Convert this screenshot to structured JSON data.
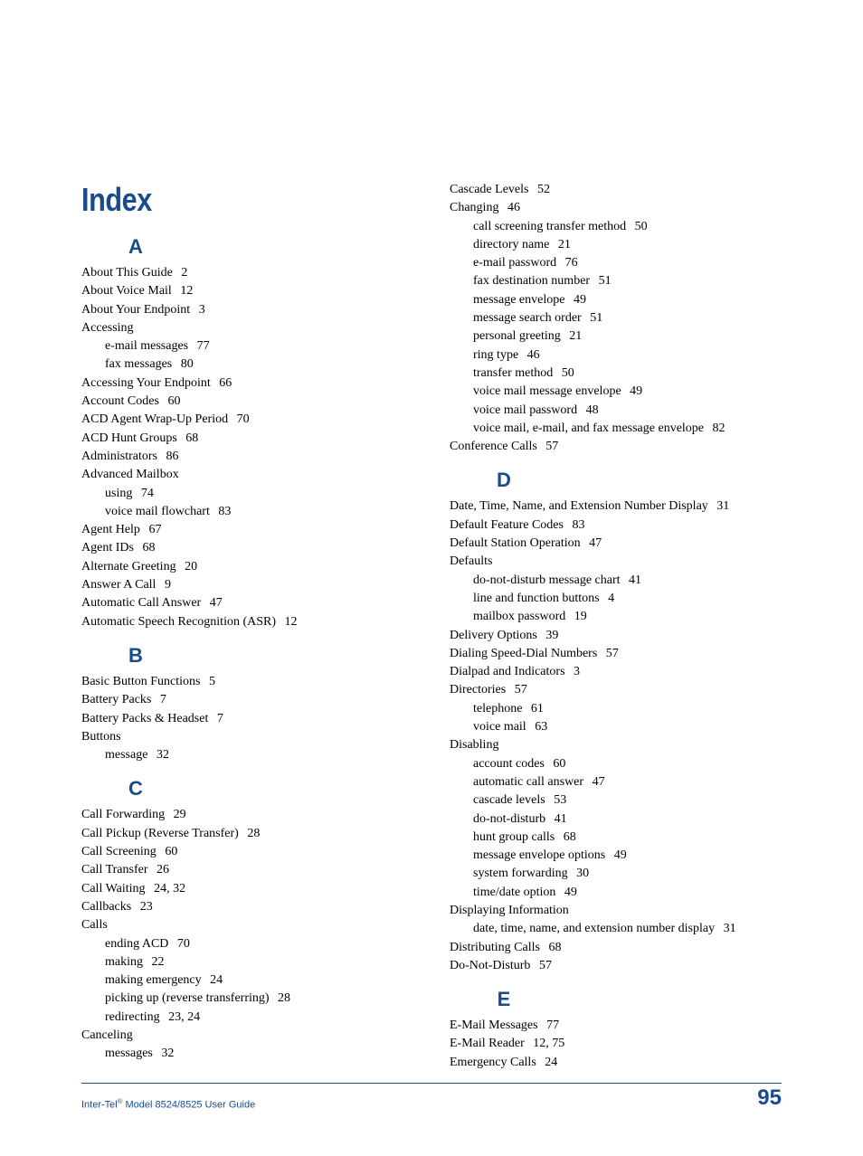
{
  "colors": {
    "brand": "#1a4b8c",
    "text": "#000000",
    "bg": "#ffffff"
  },
  "fonts": {
    "body": "Times New Roman",
    "heading": "Arial",
    "title_size": 36,
    "letter_size": 22,
    "entry_size": 14
  },
  "title": "Index",
  "page_number": "95",
  "footer": "Inter-Tel® Model 8524/8525 User Guide",
  "left": [
    {
      "type": "letter",
      "text": "A"
    },
    {
      "type": "main",
      "text": "About This Guide",
      "page": "2"
    },
    {
      "type": "main",
      "text": "About Voice Mail",
      "page": "12"
    },
    {
      "type": "main",
      "text": "About Your Endpoint",
      "page": "3"
    },
    {
      "type": "main",
      "text": "Accessing"
    },
    {
      "type": "sub",
      "text": "e-mail messages",
      "page": "77"
    },
    {
      "type": "sub",
      "text": "fax messages",
      "page": "80"
    },
    {
      "type": "main",
      "text": "Accessing Your Endpoint",
      "page": "66"
    },
    {
      "type": "main",
      "text": "Account Codes",
      "page": "60"
    },
    {
      "type": "main",
      "text": "ACD Agent Wrap-Up Period",
      "page": "70"
    },
    {
      "type": "main",
      "text": "ACD Hunt Groups",
      "page": "68"
    },
    {
      "type": "main",
      "text": "Administrators",
      "page": "86"
    },
    {
      "type": "main",
      "text": "Advanced Mailbox"
    },
    {
      "type": "sub",
      "text": "using",
      "page": "74"
    },
    {
      "type": "sub",
      "text": "voice mail flowchart",
      "page": "83"
    },
    {
      "type": "main",
      "text": "Agent Help",
      "page": "67"
    },
    {
      "type": "main",
      "text": "Agent IDs",
      "page": "68"
    },
    {
      "type": "main",
      "text": "Alternate Greeting",
      "page": "20"
    },
    {
      "type": "main",
      "text": "Answer A Call",
      "page": "9"
    },
    {
      "type": "main",
      "text": "Automatic Call Answer",
      "page": "47"
    },
    {
      "type": "main",
      "text": "Automatic Speech Recognition (ASR)",
      "page": "12"
    },
    {
      "type": "letter",
      "text": "B"
    },
    {
      "type": "main",
      "text": "Basic Button Functions",
      "page": "5"
    },
    {
      "type": "main",
      "text": "Battery Packs",
      "page": "7"
    },
    {
      "type": "main",
      "text": "Battery Packs & Headset",
      "page": "7"
    },
    {
      "type": "main",
      "text": "Buttons"
    },
    {
      "type": "sub",
      "text": "message",
      "page": "32"
    },
    {
      "type": "letter",
      "text": "C"
    },
    {
      "type": "main",
      "text": "Call Forwarding",
      "page": "29"
    },
    {
      "type": "main",
      "text": "Call Pickup (Reverse Transfer)",
      "page": "28"
    },
    {
      "type": "main",
      "text": "Call Screening",
      "page": "60"
    },
    {
      "type": "main",
      "text": "Call Transfer",
      "page": "26"
    },
    {
      "type": "main",
      "text": "Call Waiting",
      "page": "24,   32"
    },
    {
      "type": "main",
      "text": "Callbacks",
      "page": "23"
    },
    {
      "type": "main",
      "text": "Calls"
    },
    {
      "type": "sub",
      "text": "ending ACD",
      "page": "70"
    },
    {
      "type": "sub",
      "text": "making",
      "page": "22"
    },
    {
      "type": "sub",
      "text": "making emergency",
      "page": "24"
    },
    {
      "type": "sub",
      "text": "picking up (reverse transferring)",
      "page": "28"
    },
    {
      "type": "sub",
      "text": "redirecting",
      "page": "23,   24"
    },
    {
      "type": "main",
      "text": "Canceling"
    },
    {
      "type": "sub",
      "text": "messages",
      "page": "32"
    }
  ],
  "right": [
    {
      "type": "main",
      "text": "Cascade Levels",
      "page": "52"
    },
    {
      "type": "main",
      "text": "Changing",
      "page": "46"
    },
    {
      "type": "sub",
      "text": "call screening transfer method",
      "page": "50"
    },
    {
      "type": "sub",
      "text": "directory name",
      "page": "21"
    },
    {
      "type": "sub",
      "text": "e-mail password",
      "page": "76"
    },
    {
      "type": "sub",
      "text": "fax destination number",
      "page": "51"
    },
    {
      "type": "sub",
      "text": "message envelope",
      "page": "49"
    },
    {
      "type": "sub",
      "text": "message search order",
      "page": "51"
    },
    {
      "type": "sub",
      "text": "personal greeting",
      "page": "21"
    },
    {
      "type": "sub",
      "text": "ring type",
      "page": "46"
    },
    {
      "type": "sub",
      "text": "transfer method",
      "page": "50"
    },
    {
      "type": "sub",
      "text": "voice mail message envelope",
      "page": "49"
    },
    {
      "type": "sub",
      "text": "voice mail password",
      "page": "48"
    },
    {
      "type": "sub",
      "text": "voice mail, e-mail, and fax message envelope",
      "page": "82"
    },
    {
      "type": "main",
      "text": "Conference Calls",
      "page": "57"
    },
    {
      "type": "letter",
      "text": "D"
    },
    {
      "type": "main",
      "text": "Date, Time, Name, and Extension Number Display",
      "page": "31"
    },
    {
      "type": "main",
      "text": "Default Feature Codes",
      "page": "83"
    },
    {
      "type": "main",
      "text": "Default Station Operation",
      "page": "47"
    },
    {
      "type": "main",
      "text": "Defaults"
    },
    {
      "type": "sub",
      "text": "do-not-disturb message chart",
      "page": "41"
    },
    {
      "type": "sub",
      "text": "line and function buttons",
      "page": "4"
    },
    {
      "type": "sub",
      "text": "mailbox password",
      "page": "19"
    },
    {
      "type": "main",
      "text": "Delivery Options",
      "page": "39"
    },
    {
      "type": "main",
      "text": "Dialing Speed-Dial Numbers",
      "page": "57"
    },
    {
      "type": "main",
      "text": "Dialpad and Indicators",
      "page": "3"
    },
    {
      "type": "main",
      "text": "Directories",
      "page": "57"
    },
    {
      "type": "sub",
      "text": "telephone",
      "page": "61"
    },
    {
      "type": "sub",
      "text": "voice mail",
      "page": "63"
    },
    {
      "type": "main",
      "text": "Disabling"
    },
    {
      "type": "sub",
      "text": "account codes",
      "page": "60"
    },
    {
      "type": "sub",
      "text": "automatic call answer",
      "page": "47"
    },
    {
      "type": "sub",
      "text": "cascade levels",
      "page": "53"
    },
    {
      "type": "sub",
      "text": "do-not-disturb",
      "page": "41"
    },
    {
      "type": "sub",
      "text": "hunt group calls",
      "page": "68"
    },
    {
      "type": "sub",
      "text": "message envelope options",
      "page": "49"
    },
    {
      "type": "sub",
      "text": "system forwarding",
      "page": "30"
    },
    {
      "type": "sub",
      "text": "time/date option",
      "page": "49"
    },
    {
      "type": "main",
      "text": "Displaying Information"
    },
    {
      "type": "sub",
      "text": "date, time, name, and extension number display",
      "page": "31"
    },
    {
      "type": "main",
      "text": "Distributing Calls",
      "page": "68"
    },
    {
      "type": "main",
      "text": "Do-Not-Disturb",
      "page": "57"
    },
    {
      "type": "letter",
      "text": "E"
    },
    {
      "type": "main",
      "text": "E-Mail Messages",
      "page": "77"
    },
    {
      "type": "main",
      "text": "E-Mail Reader",
      "page": "12,   75"
    },
    {
      "type": "main",
      "text": "Emergency Calls",
      "page": "24"
    }
  ]
}
